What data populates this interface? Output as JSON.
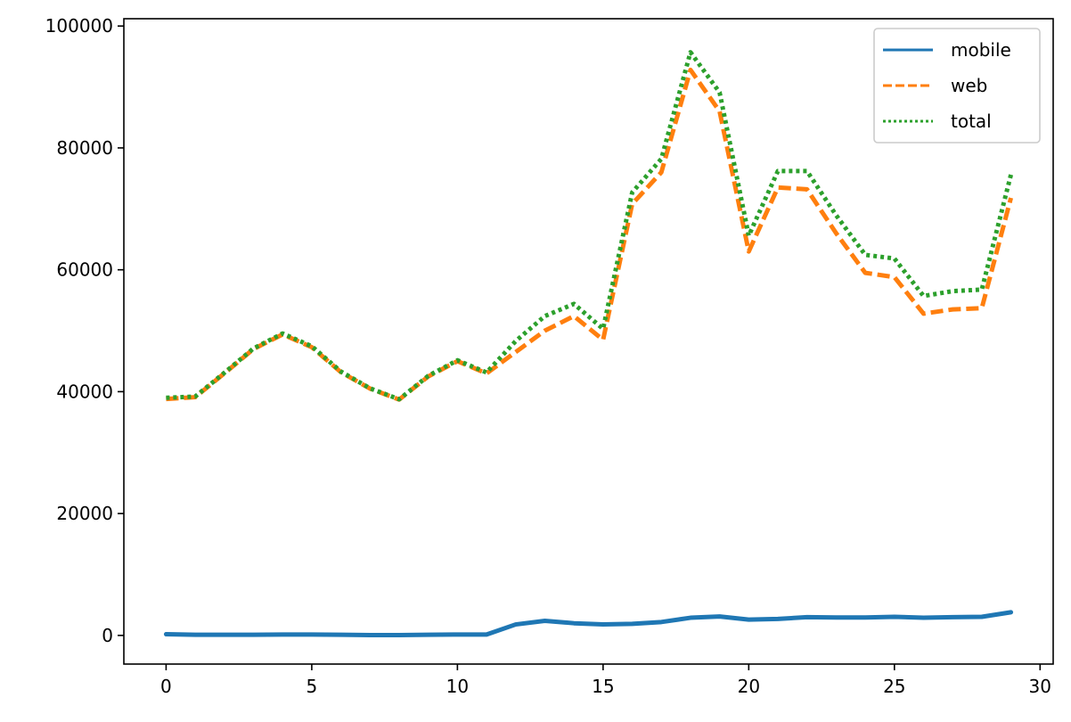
{
  "chart_data": {
    "type": "line",
    "title": "",
    "xlabel": "",
    "ylabel": "",
    "xlim": [
      -1.45,
      30.45
    ],
    "ylim": [
      -4700,
      101200
    ],
    "x_ticks": [
      0,
      5,
      10,
      15,
      20,
      25,
      30
    ],
    "y_ticks": [
      0,
      20000,
      40000,
      60000,
      80000,
      100000
    ],
    "grid": false,
    "legend_position": "top-right",
    "x": [
      0,
      1,
      2,
      3,
      4,
      5,
      6,
      7,
      8,
      9,
      10,
      11,
      12,
      13,
      14,
      15,
      16,
      17,
      18,
      19,
      20,
      21,
      22,
      23,
      24,
      25,
      26,
      27,
      28,
      29
    ],
    "series": [
      {
        "name": "mobile",
        "color": "#1f77b4",
        "style": "solid",
        "values": [
          200,
          100,
          100,
          100,
          150,
          150,
          100,
          50,
          50,
          100,
          150,
          150,
          1800,
          2400,
          2000,
          1800,
          1900,
          2200,
          2900,
          3100,
          2600,
          2700,
          3000,
          2950,
          2950,
          3050,
          2900,
          3000,
          3050,
          3800
        ]
      },
      {
        "name": "web",
        "color": "#ff7f0e",
        "style": "dashed",
        "values": [
          38800,
          39100,
          43000,
          47000,
          49400,
          47300,
          43200,
          40500,
          38700,
          42500,
          45000,
          43000,
          46500,
          50000,
          52400,
          48500,
          70800,
          76000,
          92800,
          86000,
          63000,
          73500,
          73200,
          66000,
          59500,
          58800,
          52800,
          53500,
          53700,
          71800
        ]
      },
      {
        "name": "total",
        "color": "#2ca02c",
        "style": "dotted",
        "values": [
          39000,
          39200,
          43100,
          47100,
          49550,
          47450,
          43300,
          40550,
          38750,
          42600,
          45150,
          43150,
          48300,
          52400,
          54400,
          50300,
          72700,
          78200,
          95700,
          89100,
          65600,
          76200,
          76200,
          68950,
          62450,
          61850,
          55700,
          56500,
          56750,
          75600
        ]
      }
    ]
  }
}
